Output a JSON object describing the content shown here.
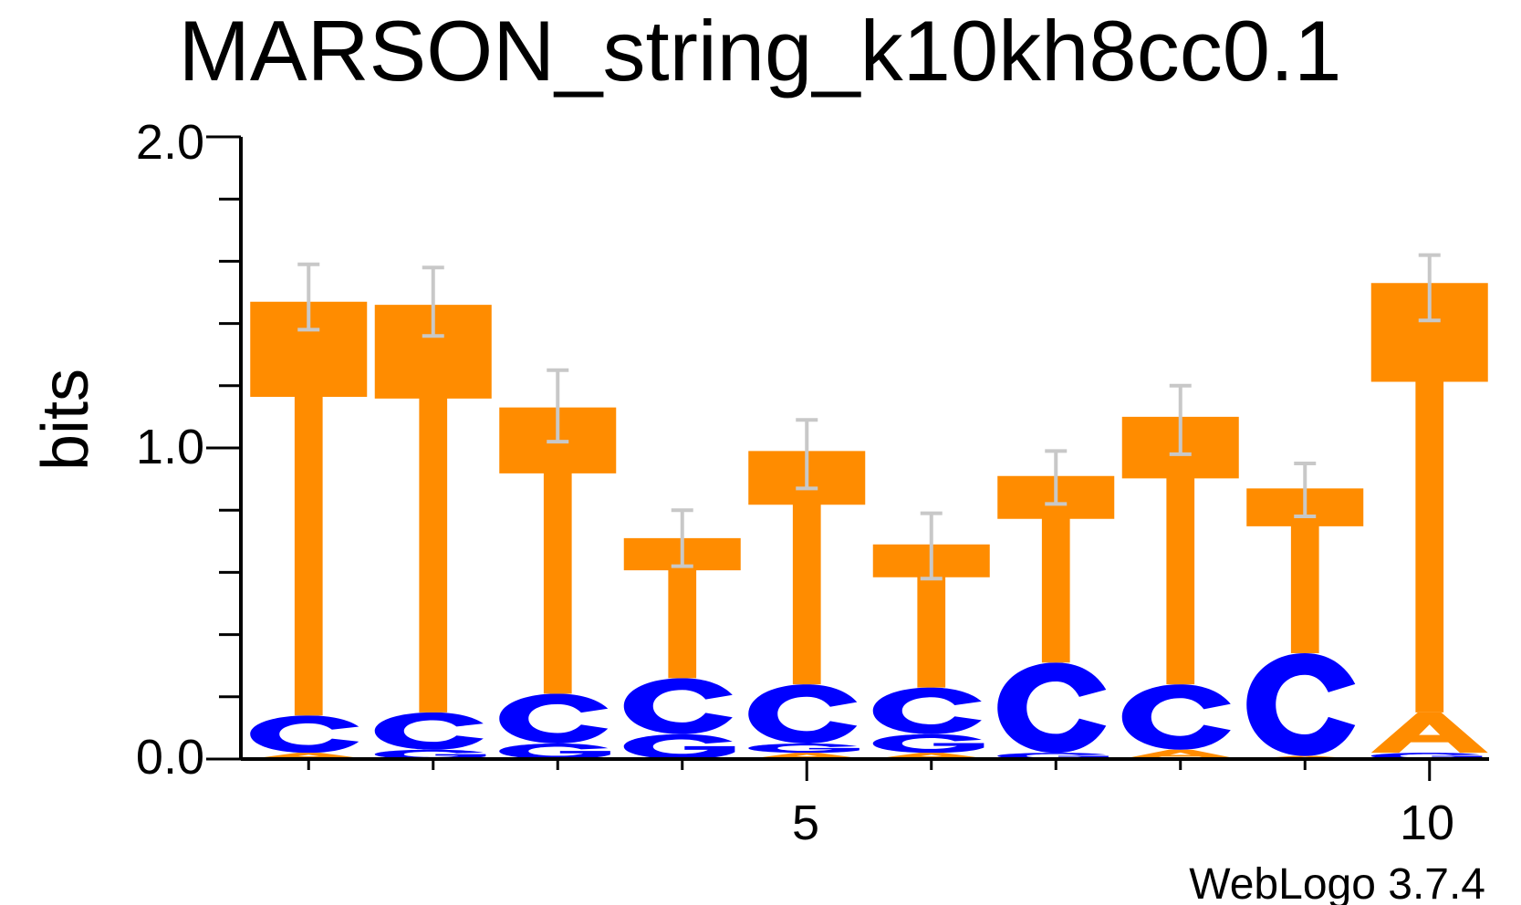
{
  "chart_data": {
    "type": "sequence_logo",
    "title": "MARSON_string_k10kh8cc0.1",
    "ylabel": "bits",
    "xlabel": "",
    "ylim": [
      0,
      2
    ],
    "y_ticks": [
      "0.0",
      "1.0",
      "2.0"
    ],
    "x_ticks": [
      "5",
      "10"
    ],
    "footer": "WebLogo 3.7.4",
    "colors": {
      "T": "#ff8c00",
      "A": "#ff8c00",
      "C": "#0000ff",
      "G": "#0000ff"
    },
    "error_bar_color": "#c8c8c8",
    "positions": [
      {
        "pos": 1,
        "stack": [
          [
            "A",
            0.02
          ],
          [
            "C",
            0.12
          ],
          [
            "T",
            1.33
          ]
        ],
        "err": [
          1.38,
          1.59
        ]
      },
      {
        "pos": 2,
        "stack": [
          [
            "G",
            0.03
          ],
          [
            "C",
            0.12
          ],
          [
            "T",
            1.31
          ]
        ],
        "err": [
          1.36,
          1.58
        ]
      },
      {
        "pos": 3,
        "stack": [
          [
            "G",
            0.05
          ],
          [
            "C",
            0.16
          ],
          [
            "T",
            0.92
          ]
        ],
        "err": [
          1.02,
          1.25
        ]
      },
      {
        "pos": 4,
        "stack": [
          [
            "G",
            0.08
          ],
          [
            "C",
            0.18
          ],
          [
            "T",
            0.45
          ]
        ],
        "err": [
          0.62,
          0.8
        ]
      },
      {
        "pos": 5,
        "stack": [
          [
            "A",
            0.02
          ],
          [
            "G",
            0.03
          ],
          [
            "C",
            0.19
          ],
          [
            "T",
            0.75
          ]
        ],
        "err": [
          0.87,
          1.09
        ]
      },
      {
        "pos": 6,
        "stack": [
          [
            "A",
            0.02
          ],
          [
            "G",
            0.06
          ],
          [
            "C",
            0.15
          ],
          [
            "T",
            0.46
          ]
        ],
        "err": [
          0.58,
          0.79
        ]
      },
      {
        "pos": 7,
        "stack": [
          [
            "G",
            0.02
          ],
          [
            "C",
            0.29
          ],
          [
            "T",
            0.6
          ]
        ],
        "err": [
          0.82,
          0.99
        ]
      },
      {
        "pos": 8,
        "stack": [
          [
            "A",
            0.03
          ],
          [
            "C",
            0.21
          ],
          [
            "T",
            0.86
          ]
        ],
        "err": [
          0.98,
          1.2
        ]
      },
      {
        "pos": 9,
        "stack": [
          [
            "A",
            0.01
          ],
          [
            "C",
            0.33
          ],
          [
            "T",
            0.53
          ]
        ],
        "err": [
          0.78,
          0.95
        ]
      },
      {
        "pos": 10,
        "stack": [
          [
            "G",
            0.02
          ],
          [
            "A",
            0.13
          ],
          [
            "T",
            1.38
          ]
        ],
        "err": [
          1.41,
          1.62
        ]
      }
    ]
  }
}
